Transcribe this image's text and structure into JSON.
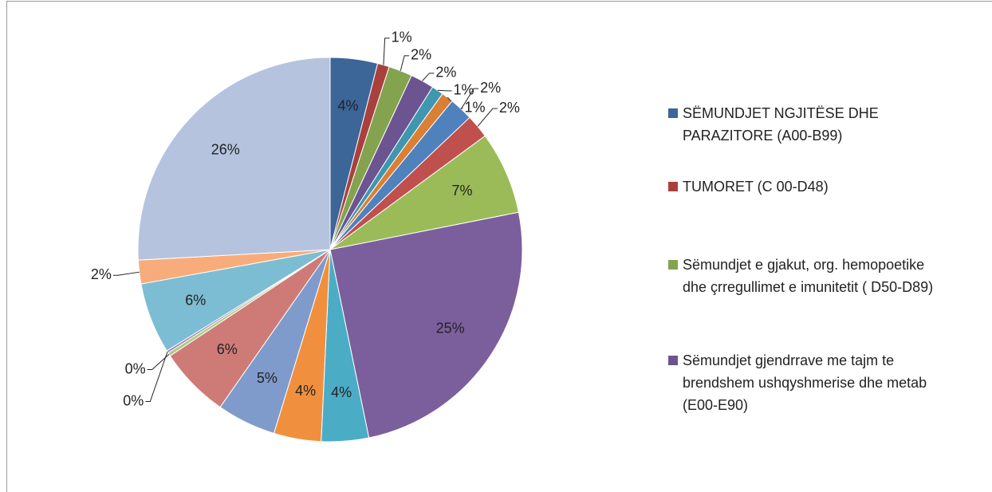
{
  "chart_data": {
    "type": "pie",
    "categories": [
      "SËMUNDJET NGJITËSE DHE PARAZITORE (A00-B99)",
      "TUMORET (C 00-D48)",
      "Sëmundjet e gjakut, org. hemopoetike dhe çrregullimet e imunitetit ( D50-D89)",
      "Sëmundjet gjendrrave me tajm te brendshem ushqyshmerise dhe metab (E00-E90)",
      null,
      null,
      null,
      null,
      null,
      null,
      null,
      null,
      null,
      null,
      null,
      null,
      null,
      null,
      null
    ],
    "values": [
      4,
      1,
      2,
      2,
      1,
      1,
      2,
      2,
      7,
      25,
      4,
      4,
      5,
      6,
      0.3,
      0.2,
      6,
      2,
      26
    ],
    "value_labels": [
      "4%",
      "1%",
      "2%",
      "2%",
      "1%",
      "1%",
      "2%",
      "2%",
      "7%",
      "25%",
      "4%",
      "4%",
      "5%",
      "6%",
      "0%",
      "0%",
      "6%",
      "2%",
      "26%"
    ],
    "colors": [
      "#3C6598",
      "#A8413E",
      "#84A34E",
      "#6C5491",
      "#3E97AF",
      "#DA7F36",
      "#4F81BD",
      "#C0504D",
      "#9BBB59",
      "#7B5F9C",
      "#4BACC6",
      "#F0903F",
      "#7E9BCB",
      "#CE7B78",
      "#B1CB80",
      "#9D88BA",
      "#7DBDD3",
      "#F8AC7B",
      "#B5C3DE"
    ]
  }
}
